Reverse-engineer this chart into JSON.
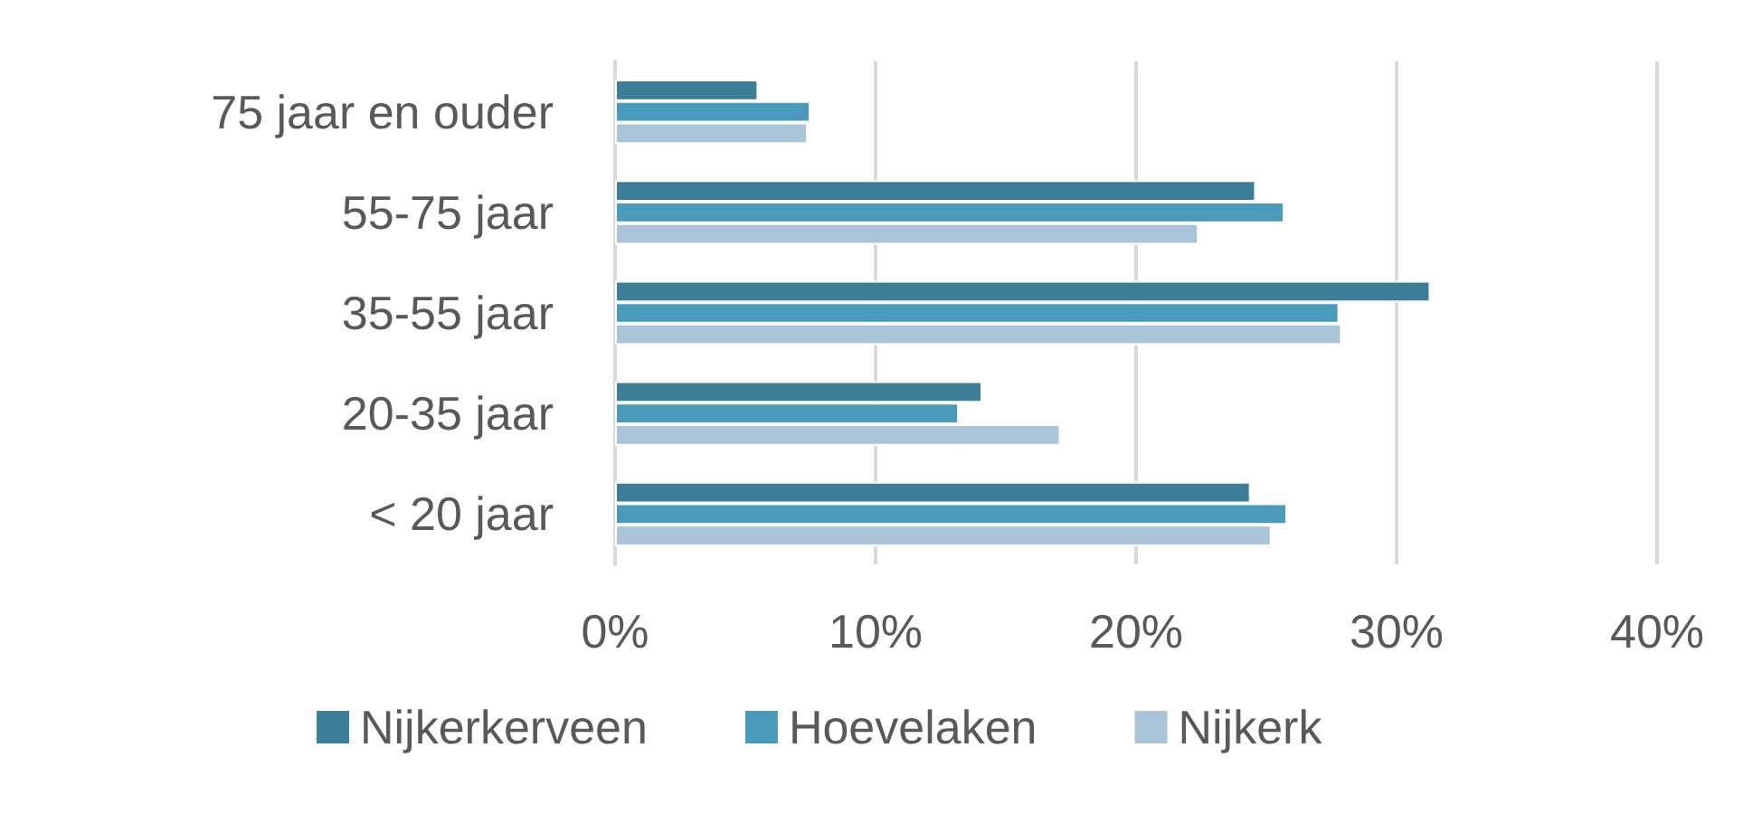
{
  "chart_data": {
    "type": "bar",
    "orientation": "horizontal",
    "categories": [
      "75 jaar en ouder",
      "55-75 jaar",
      "35-55 jaar",
      "20-35 jaar",
      "< 20 jaar"
    ],
    "series": [
      {
        "name": "Nijkerkerveen",
        "color": "#3c7d98",
        "values": [
          5.5,
          24.6,
          31.3,
          14.1,
          24.4
        ]
      },
      {
        "name": "Hoevelaken",
        "color": "#4a9abc",
        "values": [
          7.5,
          25.7,
          27.8,
          13.2,
          25.8
        ]
      },
      {
        "name": "Nijkerk",
        "color": "#a9c5d7",
        "values": [
          7.4,
          22.4,
          27.9,
          17.1,
          25.2
        ]
      }
    ],
    "xlim": [
      0,
      40
    ],
    "xticks": [
      {
        "value": 0,
        "label": "0%"
      },
      {
        "value": 10,
        "label": "10%"
      },
      {
        "value": 20,
        "label": "20%"
      },
      {
        "value": 30,
        "label": "30%"
      },
      {
        "value": 40,
        "label": "40%"
      }
    ],
    "grid": "x",
    "legend": "bottom"
  }
}
